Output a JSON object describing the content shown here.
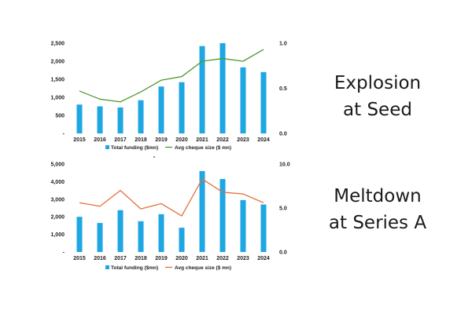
{
  "captions": [
    {
      "line1": "Explosion",
      "line2": "at Seed"
    },
    {
      "line1": "Meltdown",
      "line2": "at Series A"
    }
  ],
  "chart_data": [
    {
      "type": "bar+line",
      "categories": [
        "2015",
        "2016",
        "2017",
        "2018",
        "2019",
        "2020",
        "2021",
        "2022",
        "2023",
        "2024"
      ],
      "series": [
        {
          "name": "Total funding ($mn)",
          "kind": "bar",
          "axis": "left",
          "color": "#1ea7e3",
          "values": [
            800,
            750,
            720,
            920,
            1300,
            1420,
            2420,
            2500,
            1830,
            1700
          ]
        },
        {
          "name": "Avg cheque size ($ mn)",
          "kind": "line",
          "axis": "right",
          "color": "#4e9a2d",
          "values": [
            0.47,
            0.38,
            0.35,
            0.46,
            0.59,
            0.63,
            0.8,
            0.83,
            0.8,
            0.93
          ]
        }
      ],
      "ylim": [
        0,
        2500
      ],
      "yticks": [
        {
          "v": 0,
          "label": "-"
        },
        {
          "v": 500,
          "label": "500"
        },
        {
          "v": 1000,
          "label": "1,000"
        },
        {
          "v": 1500,
          "label": "1,500"
        },
        {
          "v": 2000,
          "label": "2,000"
        },
        {
          "v": 2500,
          "label": "2,500"
        }
      ],
      "y2lim": [
        0,
        1
      ],
      "y2ticks": [
        {
          "v": 0,
          "label": "0.0"
        },
        {
          "v": 0.5,
          "label": "0.5"
        },
        {
          "v": 1,
          "label": "1.0"
        }
      ],
      "legend": "bottom"
    },
    {
      "type": "bar+line",
      "categories": [
        "2015",
        "2016",
        "2017",
        "2018",
        "2019",
        "2020",
        "2021",
        "2022",
        "2023",
        "2024"
      ],
      "series": [
        {
          "name": "Total funding ($mn)",
          "kind": "bar",
          "axis": "left",
          "color": "#1ea7e3",
          "values": [
            2000,
            1650,
            2380,
            1750,
            2150,
            1380,
            4600,
            4150,
            2950,
            2700
          ]
        },
        {
          "name": "Avg cheque size ($ mn)",
          "kind": "line",
          "axis": "right",
          "color": "#e2703a",
          "values": [
            5.6,
            5.2,
            7.0,
            4.9,
            5.5,
            4.1,
            8.3,
            6.8,
            6.6,
            5.6
          ]
        }
      ],
      "ylim": [
        0,
        5000
      ],
      "yticks": [
        {
          "v": 0,
          "label": "-"
        },
        {
          "v": 1000,
          "label": "1,000"
        },
        {
          "v": 2000,
          "label": "2,000"
        },
        {
          "v": 3000,
          "label": "3,000"
        },
        {
          "v": 4000,
          "label": "4,000"
        },
        {
          "v": 5000,
          "label": "5,000"
        }
      ],
      "y2lim": [
        0,
        10
      ],
      "y2ticks": [
        {
          "v": 0,
          "label": "0.0"
        },
        {
          "v": 5,
          "label": "5.0"
        },
        {
          "v": 10,
          "label": "10.0"
        }
      ],
      "legend": "bottom"
    }
  ]
}
